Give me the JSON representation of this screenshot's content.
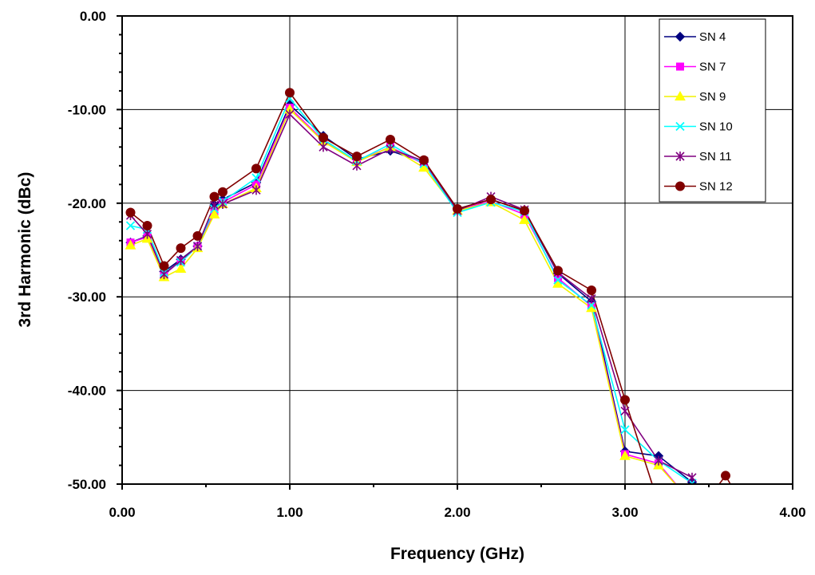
{
  "chart_data": {
    "type": "line",
    "title": "",
    "xlabel": "Frequency (GHz)",
    "ylabel": "3rd Harmonic (dBc)",
    "xlim": [
      0,
      4
    ],
    "ylim": [
      -50,
      0
    ],
    "x_ticks": [
      0,
      1,
      2,
      3,
      4
    ],
    "x_tick_labels": [
      "0.00",
      "1.00",
      "2.00",
      "3.00",
      "4.00"
    ],
    "y_ticks": [
      0,
      -10,
      -20,
      -30,
      -40,
      -50
    ],
    "y_tick_labels": [
      "0.00",
      "-10.00",
      "-20.00",
      "-30.00",
      "-40.00",
      "-50.00"
    ],
    "grid": true,
    "legend_position": "top-right",
    "series": [
      {
        "name": "SN 4",
        "color": "#000080",
        "marker": "diamond",
        "points": [
          [
            0.05,
            -24.2
          ],
          [
            0.15,
            -23.5
          ],
          [
            0.25,
            -27.3
          ],
          [
            0.35,
            -26.0
          ],
          [
            0.45,
            -24.6
          ],
          [
            0.55,
            -20.2
          ],
          [
            0.6,
            -19.6
          ],
          [
            0.8,
            -17.8
          ],
          [
            1.0,
            -9.5
          ],
          [
            1.2,
            -12.8
          ],
          [
            1.4,
            -15.3
          ],
          [
            1.6,
            -14.4
          ],
          [
            1.8,
            -15.6
          ],
          [
            2.0,
            -20.6
          ],
          [
            2.2,
            -19.6
          ],
          [
            2.4,
            -20.8
          ],
          [
            2.6,
            -27.5
          ],
          [
            2.8,
            -30.5
          ],
          [
            3.0,
            -46.5
          ],
          [
            3.2,
            -47.0
          ],
          [
            3.4,
            -49.8
          ],
          [
            3.45,
            -51.0
          ]
        ]
      },
      {
        "name": "SN 7",
        "color": "#ff00ff",
        "marker": "square",
        "points": [
          [
            0.05,
            -24.2
          ],
          [
            0.15,
            -23.6
          ],
          [
            0.25,
            -27.6
          ],
          [
            0.35,
            -26.2
          ],
          [
            0.45,
            -24.6
          ],
          [
            0.55,
            -21.0
          ],
          [
            0.6,
            -19.9
          ],
          [
            0.8,
            -18.0
          ],
          [
            1.0,
            -9.8
          ],
          [
            1.2,
            -13.3
          ],
          [
            1.4,
            -15.5
          ],
          [
            1.6,
            -14.0
          ],
          [
            1.8,
            -15.8
          ],
          [
            2.0,
            -20.7
          ],
          [
            2.2,
            -19.8
          ],
          [
            2.4,
            -21.2
          ],
          [
            2.6,
            -28.0
          ],
          [
            2.8,
            -31.0
          ],
          [
            3.0,
            -46.8
          ],
          [
            3.2,
            -47.8
          ],
          [
            3.35,
            -51.0
          ]
        ]
      },
      {
        "name": "SN 9",
        "color": "#ffff00",
        "marker": "triangle",
        "points": [
          [
            0.05,
            -24.5
          ],
          [
            0.15,
            -23.8
          ],
          [
            0.25,
            -27.9
          ],
          [
            0.35,
            -27.0
          ],
          [
            0.45,
            -24.8
          ],
          [
            0.55,
            -21.2
          ],
          [
            0.6,
            -20.1
          ],
          [
            0.8,
            -18.4
          ],
          [
            1.0,
            -10.0
          ],
          [
            1.2,
            -13.4
          ],
          [
            1.4,
            -15.6
          ],
          [
            1.6,
            -14.0
          ],
          [
            1.8,
            -16.2
          ],
          [
            2.0,
            -20.8
          ],
          [
            2.2,
            -19.9
          ],
          [
            2.4,
            -21.8
          ],
          [
            2.6,
            -28.6
          ],
          [
            2.8,
            -31.2
          ],
          [
            3.0,
            -47.0
          ],
          [
            3.2,
            -48.0
          ],
          [
            3.35,
            -51.0
          ]
        ]
      },
      {
        "name": "SN 10",
        "color": "#00ffff",
        "marker": "x",
        "points": [
          [
            0.05,
            -22.4
          ],
          [
            0.15,
            -22.8
          ],
          [
            0.25,
            -27.4
          ],
          [
            0.35,
            -26.3
          ],
          [
            0.45,
            -24.6
          ],
          [
            0.55,
            -20.6
          ],
          [
            0.6,
            -19.8
          ],
          [
            0.8,
            -17.3
          ],
          [
            1.0,
            -8.8
          ],
          [
            1.2,
            -13.2
          ],
          [
            1.4,
            -15.5
          ],
          [
            1.6,
            -13.7
          ],
          [
            1.8,
            -15.8
          ],
          [
            2.0,
            -21.0
          ],
          [
            2.2,
            -19.9
          ],
          [
            2.4,
            -20.9
          ],
          [
            2.6,
            -28.2
          ],
          [
            2.8,
            -30.9
          ],
          [
            3.0,
            -44.2
          ],
          [
            3.2,
            -47.5
          ],
          [
            3.4,
            -49.9
          ],
          [
            3.45,
            -51.0
          ]
        ]
      },
      {
        "name": "SN 11",
        "color": "#800080",
        "marker": "star",
        "points": [
          [
            0.05,
            -21.3
          ],
          [
            0.15,
            -23.3
          ],
          [
            0.25,
            -27.6
          ],
          [
            0.35,
            -26.1
          ],
          [
            0.45,
            -24.6
          ],
          [
            0.55,
            -20.2
          ],
          [
            0.6,
            -20.1
          ],
          [
            0.8,
            -18.6
          ],
          [
            1.0,
            -10.5
          ],
          [
            1.2,
            -14.0
          ],
          [
            1.4,
            -16.0
          ],
          [
            1.6,
            -14.2
          ],
          [
            1.8,
            -15.5
          ],
          [
            2.0,
            -20.8
          ],
          [
            2.2,
            -19.3
          ],
          [
            2.4,
            -20.7
          ],
          [
            2.6,
            -27.4
          ],
          [
            2.8,
            -30.2
          ],
          [
            3.0,
            -42.2
          ],
          [
            3.2,
            -47.5
          ],
          [
            3.4,
            -49.3
          ],
          [
            3.45,
            -51.0
          ]
        ]
      },
      {
        "name": "SN 12",
        "color": "#800000",
        "marker": "circle",
        "points": [
          [
            0.05,
            -21.0
          ],
          [
            0.15,
            -22.4
          ],
          [
            0.25,
            -26.7
          ],
          [
            0.35,
            -24.8
          ],
          [
            0.45,
            -23.5
          ],
          [
            0.55,
            -19.3
          ],
          [
            0.6,
            -18.8
          ],
          [
            0.8,
            -16.3
          ],
          [
            1.0,
            -8.2
          ],
          [
            1.2,
            -13.0
          ],
          [
            1.4,
            -15.0
          ],
          [
            1.6,
            -13.2
          ],
          [
            1.8,
            -15.4
          ],
          [
            2.0,
            -20.6
          ],
          [
            2.2,
            -19.6
          ],
          [
            2.4,
            -20.8
          ],
          [
            2.6,
            -27.2
          ],
          [
            2.8,
            -29.3
          ],
          [
            3.0,
            -41.0
          ],
          [
            3.18,
            -51.0
          ],
          [
            null,
            null
          ],
          [
            3.52,
            -51.0
          ],
          [
            3.6,
            -49.1
          ],
          [
            3.66,
            -51.0
          ]
        ]
      }
    ]
  }
}
